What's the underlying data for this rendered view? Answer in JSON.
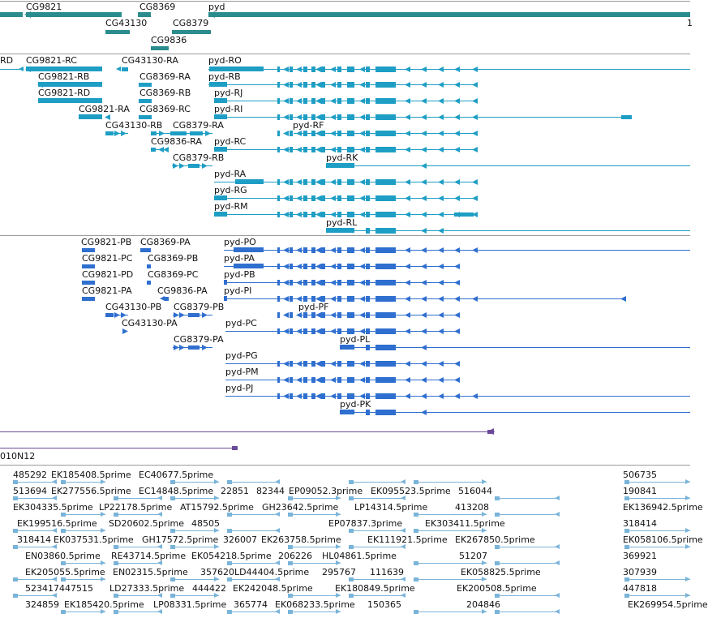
{
  "colors": {
    "gene": "#2a8c8c",
    "transcript_a": "#1e9ec4",
    "transcript_b": "#2f6fcf",
    "misc": "#6b4a9a",
    "est": "#7ab4d9"
  },
  "genes": [
    "CG9821",
    "CG8369",
    "pyd",
    "CG43130",
    "CG8379",
    "CG9836"
  ],
  "transcripts_set_a": [
    "RD",
    "CG9821-RC",
    "CG43130-RA",
    "pyd-RO",
    "CG9821-RB",
    "CG8369-RA",
    "pyd-RB",
    "CG9821-RD",
    "CG8369-RB",
    "pyd-RJ",
    "CG9821-RA",
    "CG8369-RC",
    "pyd-RI",
    "CG43130-RB",
    "CG8379-RA",
    "pyd-RF",
    "CG9836-RA",
    "pyd-RC",
    "CG8379-RB",
    "pyd-RK",
    "pyd-RA",
    "pyd-RG",
    "pyd-RM",
    "pyd-RL"
  ],
  "transcripts_set_b": [
    "CG9821-PB",
    "CG8369-PA",
    "pyd-PO",
    "CG9821-PC",
    "CG8369-PB",
    "pyd-PA",
    "CG9821-PD",
    "CG8369-PC",
    "pyd-PB",
    "CG9821-PA",
    "CG9836-PA",
    "pyd-PI",
    "CG43130-PB",
    "CG8379-PB",
    "pyd-PF",
    "CG43130-PA",
    "pyd-PC",
    "CG8379-PA",
    "pyd-PL",
    "pyd-PG",
    "pyd-PM",
    "pyd-PJ",
    "pyd-PK"
  ],
  "misc_features": [
    "010N12"
  ],
  "est_labels": [
    "485292",
    "EK185408.5prime",
    "EC40677.5prime",
    "506735",
    "513694",
    "EK277556.5prime",
    "EC14848.5prime",
    "22851",
    "82344",
    "EP09052.3prime",
    "EK095523.5prime",
    "516044",
    "190841",
    "EK304335.5prime",
    "LP22178.5prime",
    "AT15792.5prime",
    "GH23642.5prime",
    "LP14314.5prime",
    "413208",
    "EK136942.5prime",
    "EK199516.5prime",
    "SD20602.5prime",
    "48505",
    "EP07837.3prime",
    "EK303411.5prime",
    "318414",
    "EK037531.5prime",
    "GH17572.5prime",
    "326007",
    "EK263758.5prime",
    "EK111921.5prime",
    "EK267850.5prime",
    "EK058106.5prime",
    "EN03860.5prime",
    "RE43714.5prime",
    "EK054218.5prime",
    "206226",
    "HL04861.5prime",
    "51207",
    "369921",
    "EK205055.5prime",
    "EN02315.5prime",
    "357620",
    "LD44404.5prime",
    "295767",
    "111639",
    "EK058825.5prime",
    "307939",
    "523417",
    "447515",
    "LD27333.5prime",
    "444422",
    "EK242048.5prime",
    "EK180849.5prime",
    "EK200508.5prime",
    "447818",
    "324859",
    "EK185420.5prime",
    "LP08331.5prime",
    "365774",
    "EK068233.5prime",
    "150365",
    "204846",
    "EK269954.5prime"
  ]
}
